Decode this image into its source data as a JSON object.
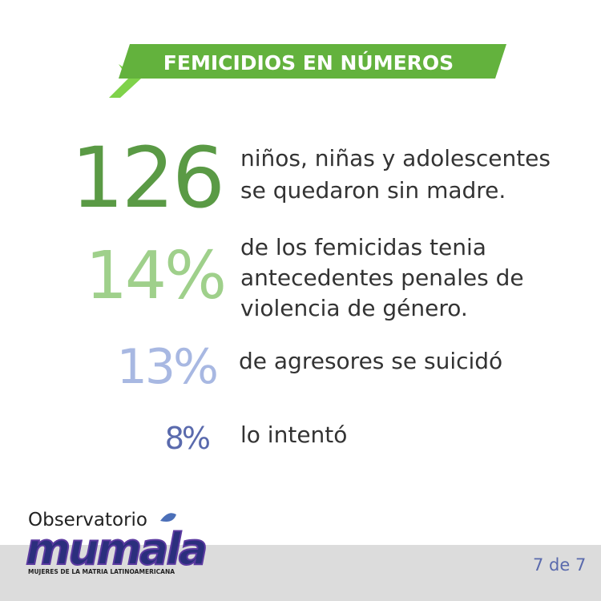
{
  "header": {
    "title": "FEMICIDIOS EN NÚMEROS"
  },
  "stats": [
    {
      "value": "126",
      "lines": [
        "niños, niñas y adolescentes",
        "se quedaron sin madre."
      ]
    },
    {
      "value": "14%",
      "lines": [
        "de los femicidas tenia",
        "antecedentes penales de",
        "violencia de género."
      ]
    },
    {
      "value": "13%",
      "lines": [
        "de agresores se suicidó"
      ]
    },
    {
      "value": "8%",
      "lines": [
        "lo intentó"
      ]
    }
  ],
  "footer": {
    "logo_top": "Observatorio",
    "logo_main": "mumala",
    "logo_sub": "MUJERES DE LA MATRIA LATINOAMERICANA",
    "page": "7 de 7"
  }
}
